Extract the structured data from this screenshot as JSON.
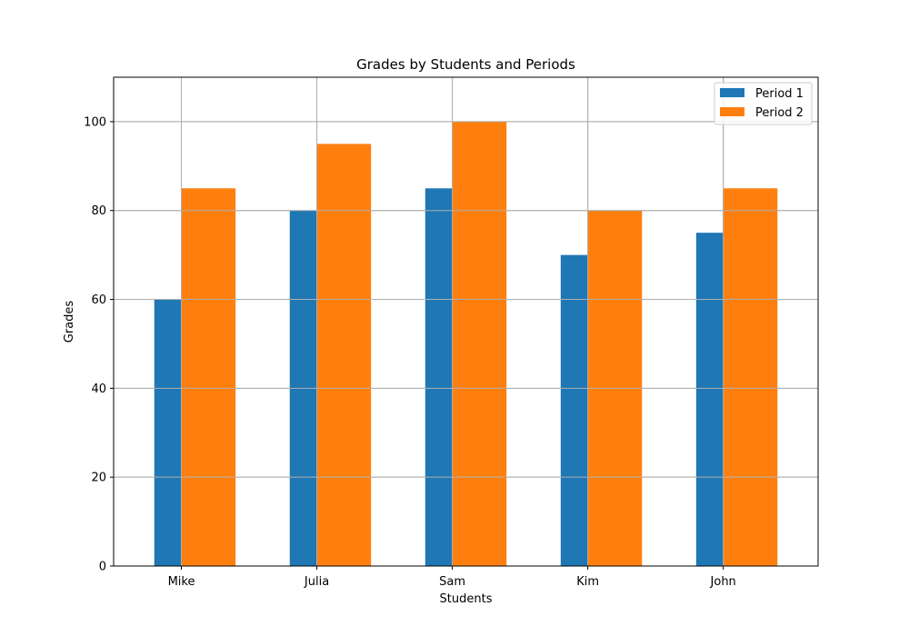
{
  "chart_data": {
    "type": "bar",
    "title": "Grades by Students and Periods",
    "xlabel": "Students",
    "ylabel": "Grades",
    "categories": [
      "Mike",
      "Julia",
      "Sam",
      "Kim",
      "John"
    ],
    "series": [
      {
        "name": "Period 1",
        "values": [
          60,
          80,
          85,
          70,
          75
        ],
        "color": "#1f77b4"
      },
      {
        "name": "Period 2",
        "values": [
          85,
          95,
          100,
          80,
          85
        ],
        "color": "#ff7f0e"
      }
    ],
    "ylim": [
      0,
      110
    ],
    "yticks": [
      0,
      20,
      40,
      60,
      80,
      100
    ],
    "grid": true,
    "legend_position": "top-right"
  }
}
